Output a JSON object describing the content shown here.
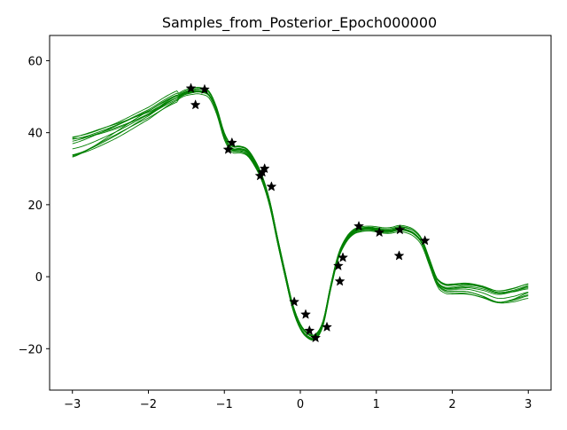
{
  "chart_data": {
    "type": "line",
    "title": "Samples_from_Posterior_Epoch000000",
    "xlabel": "",
    "ylabel": "",
    "xlim": [
      -3.3,
      3.3
    ],
    "ylim": [
      -31.5,
      67
    ],
    "xticks": [
      -3,
      -2,
      -1,
      0,
      1,
      2,
      3
    ],
    "yticks": [
      -20,
      0,
      20,
      40,
      60
    ],
    "grid": false,
    "legend": "none",
    "line_color": "#008000",
    "marker_color": "#000000",
    "marker": "star",
    "base_curve": {
      "x": [
        -3.0,
        -2.5,
        -2.0,
        -1.6,
        -1.4,
        -1.3,
        -1.2,
        -1.1,
        -1.0,
        -0.9,
        -0.8,
        -0.7,
        -0.6,
        -0.5,
        -0.4,
        -0.3,
        -0.2,
        -0.1,
        0.0,
        0.1,
        0.2,
        0.3,
        0.4,
        0.5,
        0.6,
        0.7,
        0.8,
        0.9,
        1.0,
        1.1,
        1.2,
        1.3,
        1.4,
        1.5,
        1.6,
        1.7,
        1.8,
        1.9,
        2.0,
        2.2,
        2.4,
        2.6,
        2.8,
        3.0
      ],
      "y": [
        35.5,
        39.5,
        45.0,
        50.0,
        51.5,
        51.5,
        50.5,
        46.0,
        39.0,
        35.5,
        35.3,
        34.5,
        31.5,
        27.0,
        20.0,
        10.0,
        0.5,
        -8.5,
        -14.0,
        -16.5,
        -16.8,
        -13.0,
        -3.0,
        5.5,
        10.0,
        12.3,
        13.0,
        13.2,
        13.0,
        12.7,
        12.8,
        13.3,
        13.0,
        12.0,
        9.5,
        4.0,
        -1.5,
        -3.3,
        -3.5,
        -3.5,
        -4.5,
        -6.0,
        -5.5,
        -4.3
      ]
    },
    "series": [
      {
        "offset": 0.0,
        "wave": 0.0
      },
      {
        "offset": 0.6,
        "wave": 0.5
      },
      {
        "offset": -0.5,
        "wave": -0.4
      },
      {
        "offset": 1.0,
        "wave": 0.8
      },
      {
        "offset": -0.9,
        "wave": 0.3
      },
      {
        "offset": 0.3,
        "wave": -0.9
      },
      {
        "offset": 1.3,
        "wave": -0.2
      },
      {
        "offset": -1.2,
        "wave": 0.7
      },
      {
        "offset": 0.8,
        "wave": 1.0
      },
      {
        "offset": -0.3,
        "wave": -1.1
      },
      {
        "offset": 1.8,
        "wave": 0.2
      }
    ],
    "observations": {
      "x": [
        -1.44,
        -1.38,
        -1.26,
        -0.95,
        -0.9,
        -0.53,
        -0.5,
        -0.47,
        -0.38,
        -0.08,
        0.07,
        0.12,
        0.2,
        0.35,
        0.5,
        0.52,
        0.56,
        0.77,
        1.04,
        1.3,
        1.31,
        1.64
      ],
      "y": [
        52.3,
        47.7,
        52.0,
        35.3,
        37.2,
        28.0,
        29.0,
        30.0,
        25.0,
        -7.0,
        -10.5,
        -15.0,
        -17.0,
        -14.0,
        3.0,
        -1.3,
        5.3,
        14.0,
        12.3,
        5.8,
        13.0,
        10.0
      ]
    }
  }
}
